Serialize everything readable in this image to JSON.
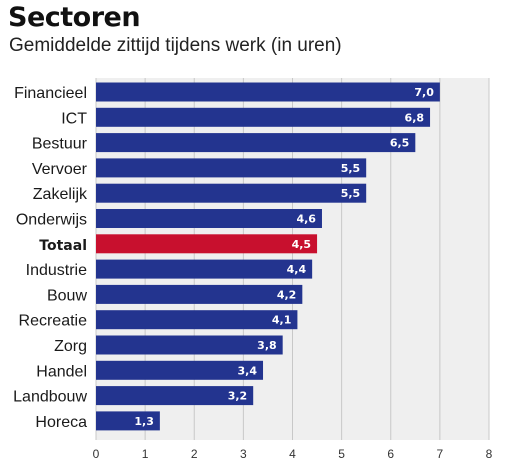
{
  "header": {
    "title": "Sectoren",
    "subtitle": "Gemiddelde zittijd tijdens werk (in uren)"
  },
  "chart_data": {
    "type": "bar",
    "orientation": "horizontal",
    "title": "Sectoren",
    "subtitle": "Gemiddelde zittijd tijdens werk (in uren)",
    "categories": [
      "Financieel",
      "ICT",
      "Bestuur",
      "Vervoer",
      "Zakelijk",
      "Onderwijs",
      "Totaal",
      "Industrie",
      "Bouw",
      "Recreatie",
      "Zorg",
      "Handel",
      "Landbouw",
      "Horeca"
    ],
    "values": [
      7.0,
      6.8,
      6.5,
      5.5,
      5.5,
      4.6,
      4.5,
      4.4,
      4.2,
      4.1,
      3.8,
      3.4,
      3.2,
      1.3
    ],
    "value_labels": [
      "7,0",
      "6,8",
      "6,5",
      "5,5",
      "5,5",
      "4,6",
      "4,5",
      "4,4",
      "4,2",
      "4,1",
      "3,8",
      "3,4",
      "3,2",
      "1,3"
    ],
    "highlight_category": "Totaal",
    "xlim": [
      0,
      8
    ],
    "x_ticks": [
      "0",
      "1",
      "2",
      "3",
      "4",
      "5",
      "6",
      "7",
      "8"
    ],
    "grid": true,
    "colors": {
      "bar": "#23348f",
      "highlight": "#c8102e",
      "grid": "#c8c8c8",
      "plot_background": "#efefef"
    }
  }
}
